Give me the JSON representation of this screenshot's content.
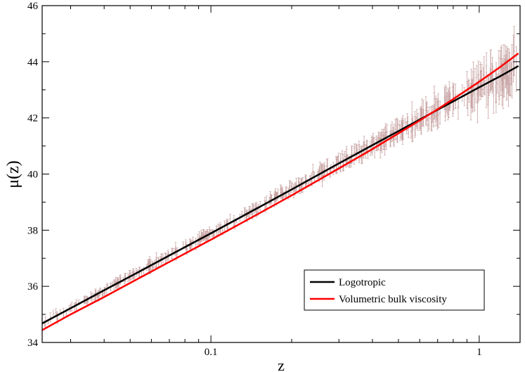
{
  "chart_data": {
    "type": "scatter",
    "xlabel": "z",
    "ylabel": "μ(z)",
    "xscale": "log",
    "xlim": [
      0.0235,
      1.42
    ],
    "ylim": [
      34,
      46
    ],
    "x_ticks": [
      {
        "value": 0.1,
        "label": "0.1"
      },
      {
        "value": 1,
        "label": "1"
      }
    ],
    "y_ticks": [
      {
        "value": 34,
        "label": "34"
      },
      {
        "value": 36,
        "label": "36"
      },
      {
        "value": 38,
        "label": "38"
      },
      {
        "value": 40,
        "label": "40"
      },
      {
        "value": 42,
        "label": "42"
      },
      {
        "value": 44,
        "label": "44"
      },
      {
        "value": 46,
        "label": "46"
      }
    ],
    "legend_position": "bottom-right",
    "series": [
      {
        "name": "Logotropic",
        "kind": "line",
        "color": "#000000",
        "x": [
          0.0235,
          0.03,
          0.04,
          0.05,
          0.07,
          0.1,
          0.15,
          0.2,
          0.3,
          0.4,
          0.5,
          0.6,
          0.7,
          0.8,
          1.0,
          1.2,
          1.4
        ],
        "y": [
          34.68,
          35.22,
          35.86,
          36.35,
          37.1,
          37.89,
          38.8,
          39.45,
          40.38,
          41.03,
          41.53,
          41.94,
          42.29,
          42.59,
          43.09,
          43.49,
          43.85
        ]
      },
      {
        "name": "Volumetric bulk viscosity",
        "kind": "line",
        "color": "#ff0000",
        "x": [
          0.0235,
          0.03,
          0.04,
          0.05,
          0.07,
          0.1,
          0.15,
          0.2,
          0.3,
          0.4,
          0.5,
          0.6,
          0.7,
          0.8,
          1.0,
          1.2,
          1.4
        ],
        "y": [
          34.44,
          35.0,
          35.62,
          36.12,
          36.87,
          37.66,
          38.58,
          39.24,
          40.2,
          40.89,
          41.45,
          41.91,
          42.31,
          42.67,
          43.29,
          43.82,
          44.3
        ]
      }
    ],
    "observations": {
      "name": "",
      "color": "#c8a2a2",
      "count": 580,
      "z_range": [
        0.0235,
        1.4
      ],
      "note_scatter_about_logotropic": true
    }
  }
}
